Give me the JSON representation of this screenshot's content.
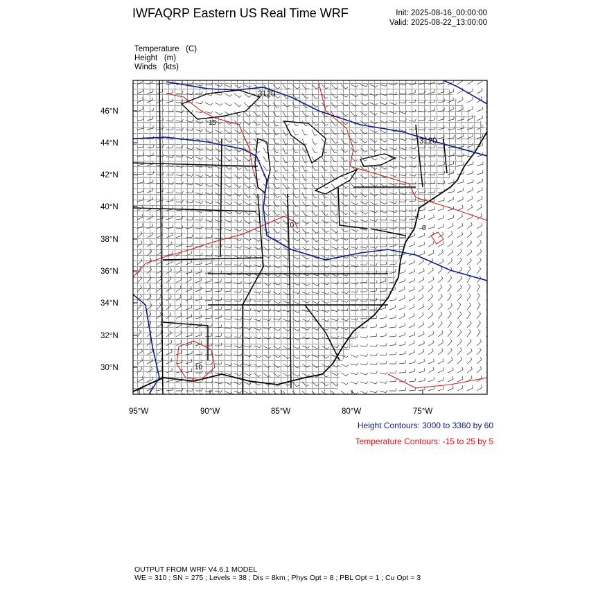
{
  "header": {
    "title": "IWFAQRP Eastern US Real Time WRF",
    "init": "Init: 2025-08-16_00:00:00",
    "valid": "Valid: 2025-08-22_13:00:00"
  },
  "fields": [
    {
      "name": "Temperature",
      "unit": "(C)"
    },
    {
      "name": "Height",
      "unit": "(m)"
    },
    {
      "name": "Winds",
      "unit": "(kts)"
    }
  ],
  "axes": {
    "lat_labels": [
      "46°N",
      "44°N",
      "42°N",
      "40°N",
      "38°N",
      "36°N",
      "34°N",
      "32°N",
      "30°N"
    ],
    "lon_labels": [
      "95°W",
      "90°W",
      "85°W",
      "80°W",
      "75°W"
    ]
  },
  "contour_labels": {
    "height": [
      "3120",
      "3120"
    ],
    "temperature": [
      "15",
      "10",
      "10",
      "0"
    ]
  },
  "legend": {
    "height": "Height Contours: 3000 to 3360 by 60",
    "temperature": "Temperature Contours: -15 to 25 by 5",
    "height_color": "#0a1a8a",
    "temperature_color": "#e01010"
  },
  "footer": {
    "line1": "OUTPUT FROM WRF V4.6.1 MODEL",
    "line2": "WE = 310 ; SN = 275 ; Levels = 38 ; Dis = 8km ; Phys Opt = 8 ; PBL Opt = 1 ; Cu Opt = 3"
  }
}
